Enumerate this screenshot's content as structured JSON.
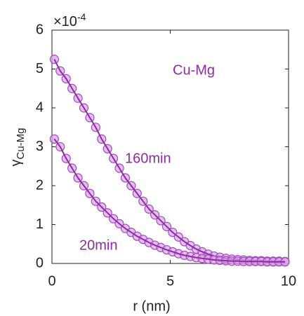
{
  "chart_data": {
    "type": "scatter",
    "xlabel": "r (nm)",
    "ylabel": {
      "main": "γ",
      "sub": "Cu-Mg"
    },
    "y_multiplier": {
      "base": "×10",
      "exponent": "-4"
    },
    "xlim": [
      0,
      10
    ],
    "xticks": [
      0,
      5,
      10
    ],
    "ylim": [
      0,
      6
    ],
    "yticks": [
      0,
      1,
      2,
      3,
      4,
      5,
      6
    ],
    "grid": false,
    "annotations": [
      "Cu-Mg",
      "160min",
      "20min"
    ],
    "annotation_color": "#8e2ba3",
    "x": [
      0.1,
      0.35,
      0.6,
      0.85,
      1.1,
      1.35,
      1.6,
      1.85,
      2.1,
      2.35,
      2.6,
      2.85,
      3.1,
      3.35,
      3.6,
      3.85,
      4.1,
      4.35,
      4.6,
      4.85,
      5.1,
      5.35,
      5.6,
      5.85,
      6.1,
      6.35,
      6.6,
      6.85,
      7.1,
      7.35,
      7.6,
      7.85,
      8.1,
      8.35,
      8.6,
      8.85,
      9.1,
      9.35,
      9.6,
      9.85
    ],
    "series": [
      {
        "name": "160min",
        "color": "#a448c0",
        "fill": "#d6a4e4",
        "values": [
          5.25,
          4.95,
          4.75,
          4.5,
          4.25,
          4.0,
          3.75,
          3.5,
          3.2,
          2.95,
          2.7,
          2.45,
          2.2,
          2.0,
          1.8,
          1.6,
          1.4,
          1.25,
          1.1,
          0.95,
          0.8,
          0.68,
          0.56,
          0.46,
          0.37,
          0.3,
          0.24,
          0.19,
          0.16,
          0.13,
          0.11,
          0.1,
          0.09,
          0.08,
          0.07,
          0.07,
          0.06,
          0.06,
          0.06,
          0.05
        ]
      },
      {
        "name": "20min",
        "color": "#a448c0",
        "fill": "#d6a4e4",
        "values": [
          3.2,
          3.0,
          2.7,
          2.45,
          2.2,
          2.0,
          1.8,
          1.6,
          1.45,
          1.3,
          1.15,
          1.02,
          0.9,
          0.8,
          0.7,
          0.62,
          0.54,
          0.47,
          0.41,
          0.35,
          0.3,
          0.25,
          0.21,
          0.18,
          0.15,
          0.13,
          0.11,
          0.09,
          0.08,
          0.07,
          0.06,
          0.06,
          0.05,
          0.05,
          0.05,
          0.05,
          0.04,
          0.04,
          0.04,
          0.04
        ]
      }
    ]
  }
}
